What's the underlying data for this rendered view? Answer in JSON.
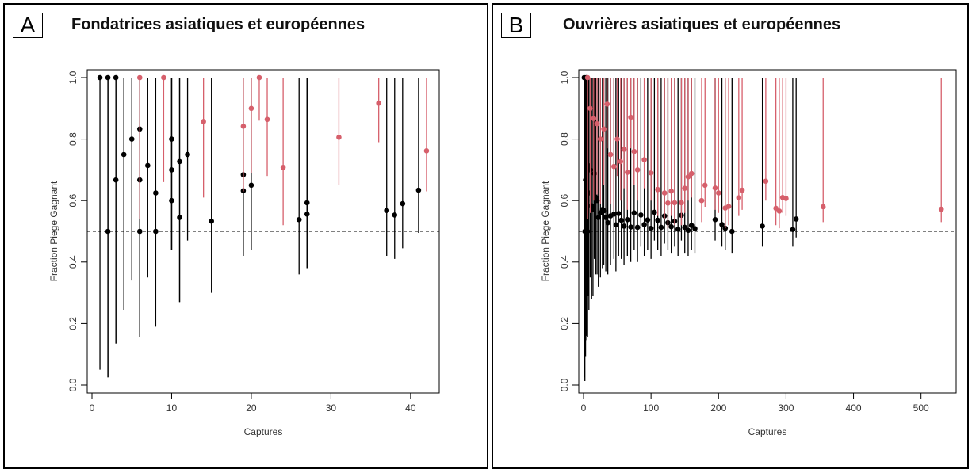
{
  "panels": [
    {
      "letter": "A",
      "title": "Fondatrices asiatiques et européennes",
      "chart_data": {
        "type": "scatter",
        "title": "Fondatrices asiatiques et européennes",
        "xlabel": "Captures",
        "ylabel": "Fraction Piege Gagnant",
        "xlim": [
          0,
          43
        ],
        "ylim": [
          0,
          1
        ],
        "xticks": [
          "0",
          "10",
          "20",
          "30",
          "40"
        ],
        "yticks": [
          "0.0",
          "0.2",
          "0.4",
          "0.6",
          "0.8",
          "1.0"
        ],
        "reference_line_y": 0.5,
        "grid": false,
        "colors": {
          "black": "#000000",
          "red": "#d65f6b"
        },
        "series": [
          {
            "color": "black",
            "x": [
              1,
              2,
              2,
              3,
              3,
              4,
              5,
              6,
              6,
              6,
              7,
              8,
              8,
              10,
              10,
              10,
              11,
              11,
              12,
              15,
              19,
              19,
              20,
              26,
              27,
              27,
              37,
              38,
              39,
              41
            ],
            "y": [
              1.0,
              1.0,
              0.5,
              1.0,
              0.667,
              0.75,
              0.8,
              0.833,
              0.667,
              0.5,
              0.714,
              0.625,
              0.5,
              0.8,
              0.7,
              0.6,
              0.727,
              0.545,
              0.75,
              0.533,
              0.684,
              0.632,
              0.65,
              0.538,
              0.593,
              0.556,
              0.568,
              0.553,
              0.59,
              0.634
            ],
            "lower": [
              0.05,
              0.025,
              0.025,
              0.135,
              0.135,
              0.245,
              0.34,
              0.155,
              0.155,
              0.155,
              0.35,
              0.19,
              0.19,
              0.44,
              0.44,
              0.44,
              0.27,
              0.27,
              0.47,
              0.3,
              0.42,
              0.42,
              0.44,
              0.36,
              0.38,
              0.38,
              0.42,
              0.41,
              0.445,
              0.495
            ],
            "upper": [
              1.0,
              1.0,
              1.0,
              1.0,
              1.0,
              1.0,
              1.0,
              1.0,
              1.0,
              1.0,
              1.0,
              1.0,
              1.0,
              1.0,
              1.0,
              1.0,
              1.0,
              1.0,
              1.0,
              1.0,
              1.0,
              1.0,
              1.0,
              1.0,
              1.0,
              1.0,
              1.0,
              1.0,
              1.0,
              1.0
            ]
          },
          {
            "color": "red",
            "x": [
              6,
              9,
              14,
              19,
              20,
              21,
              22,
              24,
              31,
              36,
              42
            ],
            "y": [
              1.0,
              1.0,
              0.857,
              0.842,
              0.9,
              1.0,
              0.864,
              0.708,
              0.806,
              0.917,
              0.762
            ],
            "lower": [
              0.54,
              0.66,
              0.61,
              0.63,
              0.69,
              0.86,
              0.68,
              0.52,
              0.65,
              0.79,
              0.63
            ],
            "upper": [
              1.0,
              1.0,
              1.0,
              1.0,
              1.0,
              1.0,
              1.0,
              1.0,
              1.0,
              1.0,
              1.0
            ]
          }
        ]
      }
    },
    {
      "letter": "B",
      "title": "Ouvrières asiatiques et européennes",
      "chart_data": {
        "type": "scatter",
        "title": "Ouvrières asiatiques et européennes",
        "xlabel": "Captures",
        "ylabel": "Fraction Piege Gagnant",
        "xlim": [
          0,
          545
        ],
        "ylim": [
          0,
          1
        ],
        "xticks": [
          "0",
          "100",
          "200",
          "300",
          "400",
          "500"
        ],
        "yticks": [
          "0.0",
          "0.2",
          "0.4",
          "0.6",
          "0.8",
          "1.0"
        ],
        "reference_line_y": 0.5,
        "grid": false,
        "colors": {
          "black": "#000000",
          "red": "#d65f6b"
        },
        "series": [
          {
            "color": "black",
            "x": [
              1,
              2,
              3,
              4,
              5,
              6,
              7,
              8,
              10,
              12,
              14,
              16,
              18,
              20,
              22,
              25,
              28,
              30,
              33,
              36,
              40,
              45,
              48,
              52,
              56,
              60,
              65,
              70,
              75,
              80,
              85,
              90,
              95,
              100,
              105,
              110,
              115,
              120,
              125,
              130,
              135,
              140,
              145,
              150,
              155,
              160,
              165,
              195,
              205,
              210,
              220,
              265,
              310,
              315
            ],
            "y": [
              1.0,
              0.5,
              0.667,
              1.0,
              0.6,
              0.5,
              0.714,
              0.625,
              0.7,
              0.583,
              0.571,
              0.688,
              0.611,
              0.6,
              0.545,
              0.56,
              0.571,
              0.567,
              0.545,
              0.528,
              0.55,
              0.556,
              0.521,
              0.558,
              0.536,
              0.517,
              0.538,
              0.514,
              0.56,
              0.513,
              0.553,
              0.522,
              0.537,
              0.51,
              0.562,
              0.536,
              0.513,
              0.55,
              0.528,
              0.515,
              0.533,
              0.507,
              0.552,
              0.513,
              0.503,
              0.519,
              0.509,
              0.538,
              0.522,
              0.51,
              0.5,
              0.517,
              0.506,
              0.54
            ],
            "lower": [
              0.025,
              0.013,
              0.094,
              0.16,
              0.146,
              0.157,
              0.29,
              0.245,
              0.35,
              0.28,
              0.29,
              0.41,
              0.36,
              0.36,
              0.32,
              0.35,
              0.38,
              0.39,
              0.37,
              0.36,
              0.39,
              0.41,
              0.37,
              0.42,
              0.41,
              0.39,
              0.42,
              0.4,
              0.44,
              0.4,
              0.45,
              0.42,
              0.44,
              0.41,
              0.47,
              0.44,
              0.42,
              0.46,
              0.44,
              0.43,
              0.45,
              0.42,
              0.47,
              0.43,
              0.42,
              0.44,
              0.43,
              0.47,
              0.45,
              0.44,
              0.43,
              0.45,
              0.45,
              0.48
            ],
            "upper": [
              1.0,
              1.0,
              1.0,
              1.0,
              1.0,
              1.0,
              1.0,
              1.0,
              1.0,
              1.0,
              1.0,
              1.0,
              1.0,
              1.0,
              1.0,
              1.0,
              1.0,
              1.0,
              1.0,
              1.0,
              1.0,
              1.0,
              1.0,
              1.0,
              1.0,
              1.0,
              1.0,
              1.0,
              1.0,
              1.0,
              1.0,
              1.0,
              1.0,
              1.0,
              1.0,
              1.0,
              1.0,
              1.0,
              1.0,
              1.0,
              1.0,
              1.0,
              1.0,
              1.0,
              1.0,
              1.0,
              1.0,
              1.0,
              1.0,
              1.0,
              1.0,
              1.0,
              1.0,
              1.0
            ]
          },
          {
            "color": "red",
            "x": [
              6,
              10,
              15,
              20,
              25,
              30,
              35,
              40,
              45,
              50,
              55,
              60,
              65,
              70,
              75,
              80,
              90,
              100,
              110,
              120,
              125,
              130,
              135,
              145,
              150,
              155,
              160,
              175,
              180,
              195,
              200,
              210,
              215,
              230,
              235,
              270,
              285,
              290,
              295,
              300,
              355,
              530
            ],
            "y": [
              1.0,
              0.9,
              0.867,
              0.85,
              0.8,
              0.833,
              0.914,
              0.75,
              0.711,
              0.8,
              0.727,
              0.767,
              0.692,
              0.871,
              0.76,
              0.7,
              0.733,
              0.69,
              0.636,
              0.625,
              0.592,
              0.631,
              0.593,
              0.593,
              0.64,
              0.677,
              0.688,
              0.6,
              0.65,
              0.641,
              0.625,
              0.576,
              0.581,
              0.609,
              0.634,
              0.663,
              0.575,
              0.566,
              0.61,
              0.607,
              0.58,
              0.572
            ],
            "lower": [
              0.54,
              0.56,
              0.6,
              0.62,
              0.59,
              0.65,
              0.77,
              0.59,
              0.57,
              0.68,
              0.6,
              0.64,
              0.57,
              0.77,
              0.65,
              0.6,
              0.64,
              0.6,
              0.55,
              0.54,
              0.51,
              0.55,
              0.52,
              0.52,
              0.56,
              0.6,
              0.61,
              0.53,
              0.58,
              0.57,
              0.56,
              0.51,
              0.52,
              0.55,
              0.57,
              0.6,
              0.52,
              0.51,
              0.56,
              0.55,
              0.53,
              0.53
            ],
            "upper": [
              1.0,
              1.0,
              1.0,
              1.0,
              1.0,
              1.0,
              1.0,
              1.0,
              1.0,
              1.0,
              1.0,
              1.0,
              1.0,
              1.0,
              1.0,
              1.0,
              1.0,
              1.0,
              1.0,
              1.0,
              1.0,
              1.0,
              1.0,
              1.0,
              1.0,
              1.0,
              1.0,
              1.0,
              1.0,
              1.0,
              1.0,
              1.0,
              1.0,
              1.0,
              1.0,
              1.0,
              1.0,
              1.0,
              1.0,
              1.0,
              1.0,
              1.0
            ]
          }
        ]
      }
    }
  ]
}
